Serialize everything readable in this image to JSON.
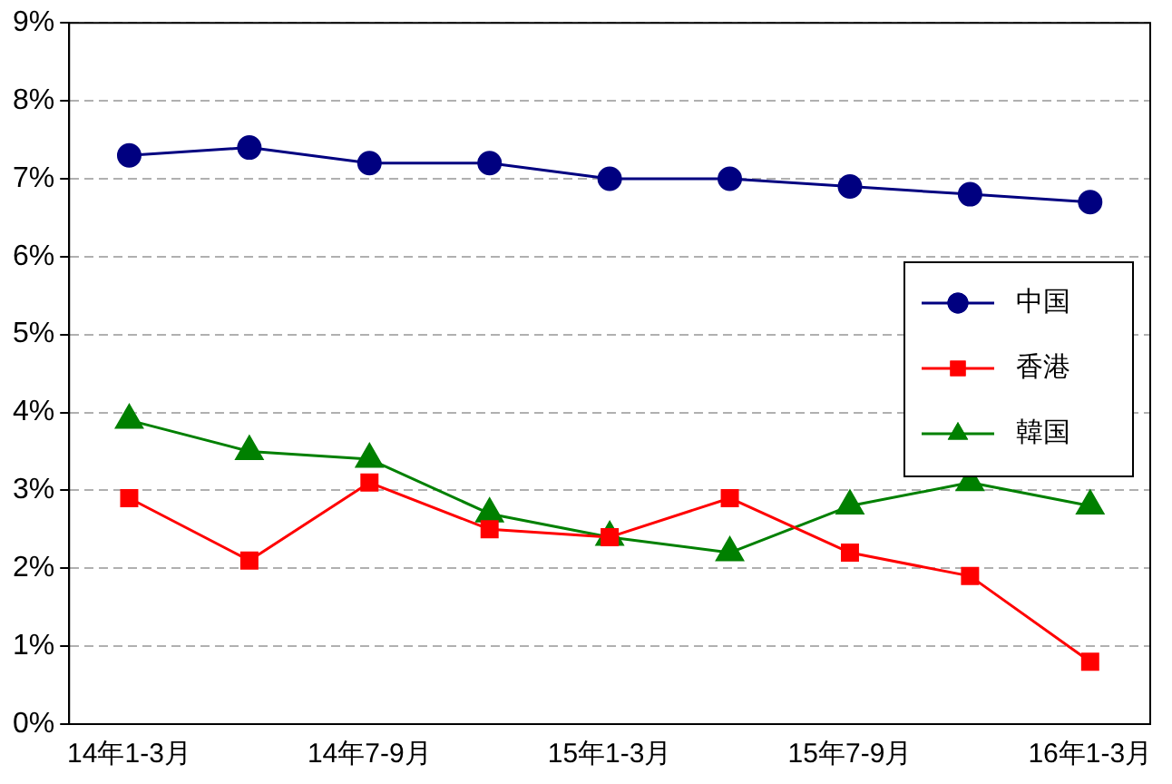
{
  "chart_data": {
    "type": "line",
    "categories": [
      "14年1-3月",
      null,
      "14年7-9月",
      null,
      "15年1-3月",
      null,
      "15年7-9月",
      null,
      "16年1-3月"
    ],
    "series": [
      {
        "name": "中国",
        "color": "#000080",
        "marker": "circle",
        "values": [
          7.3,
          7.4,
          7.2,
          7.2,
          7.0,
          7.0,
          6.9,
          6.8,
          6.7
        ]
      },
      {
        "name": "香港",
        "color": "#ff0000",
        "marker": "square",
        "values": [
          2.9,
          2.1,
          3.1,
          2.5,
          2.4,
          2.9,
          2.2,
          1.9,
          0.8
        ]
      },
      {
        "name": "韓国",
        "color": "#008000",
        "marker": "triangle",
        "values": [
          3.9,
          3.5,
          3.4,
          2.7,
          2.4,
          2.2,
          2.8,
          3.1,
          2.8
        ]
      }
    ],
    "ylim": [
      0,
      9
    ],
    "yticks": [
      {
        "value": 0,
        "label": "0%"
      },
      {
        "value": 1,
        "label": "1%"
      },
      {
        "value": 2,
        "label": "2%"
      },
      {
        "value": 3,
        "label": "3%"
      },
      {
        "value": 4,
        "label": "4%"
      },
      {
        "value": 5,
        "label": "5%"
      },
      {
        "value": 6,
        "label": "6%"
      },
      {
        "value": 7,
        "label": "7%"
      },
      {
        "value": 8,
        "label": "8%"
      },
      {
        "value": 9,
        "label": "9%"
      }
    ],
    "grid": "y",
    "legend": "right",
    "line_style": "solid"
  }
}
